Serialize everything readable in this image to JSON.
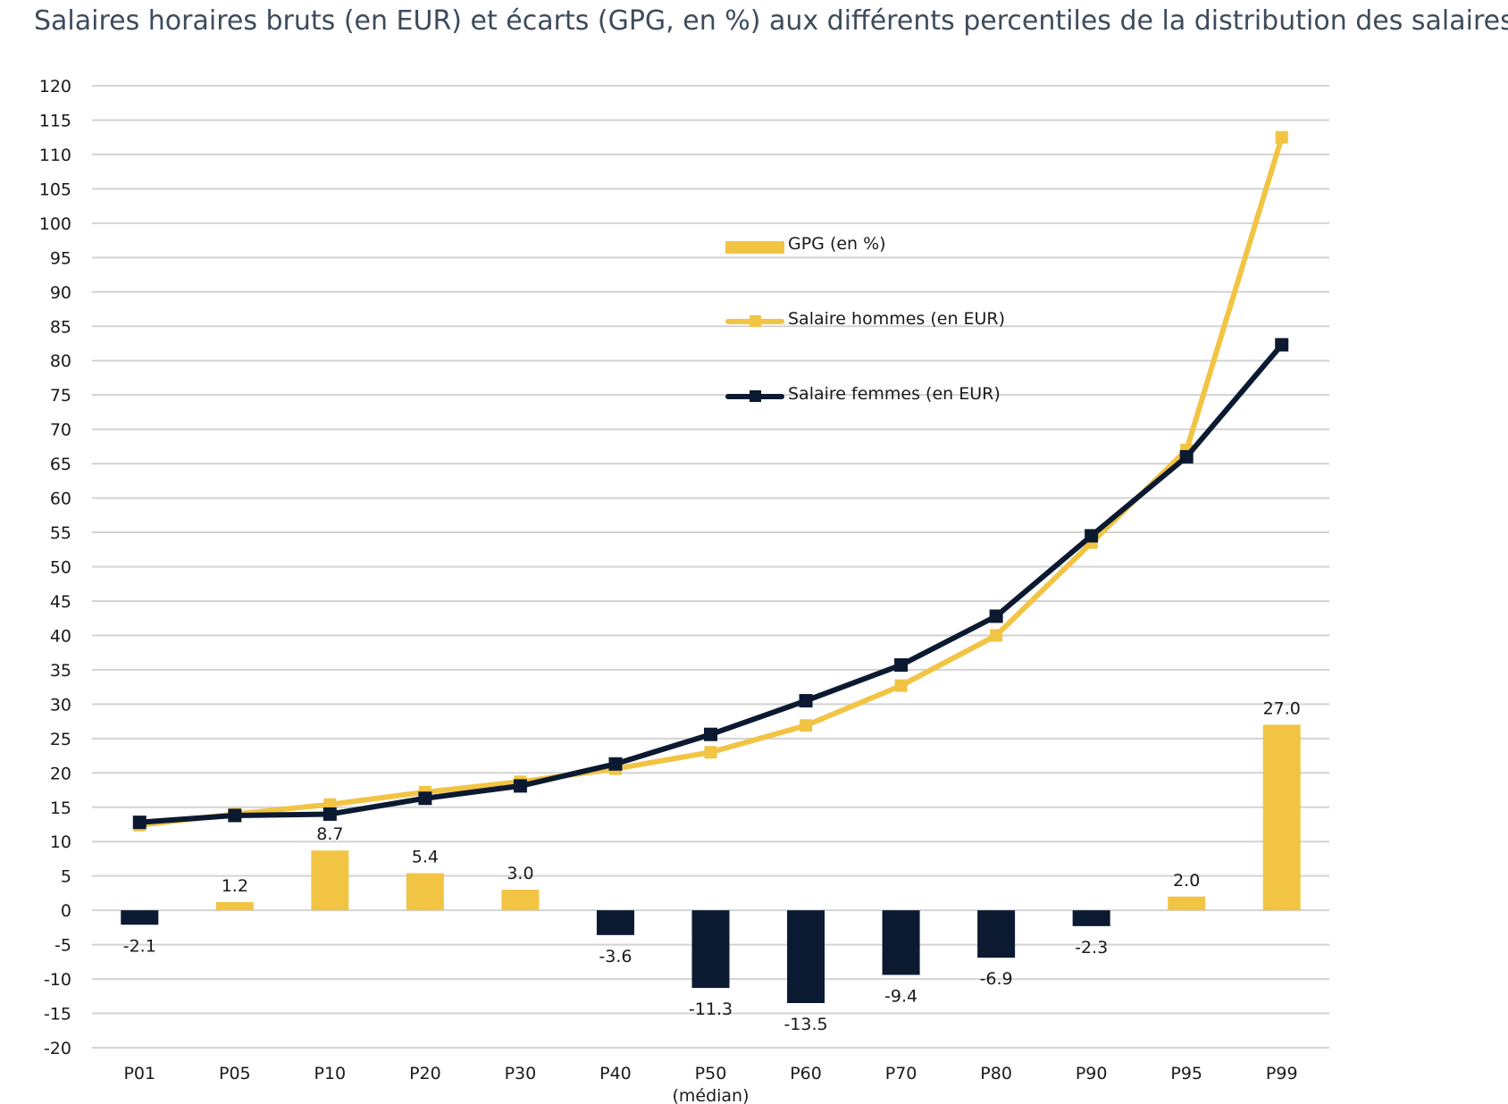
{
  "title": "Salaires horaires bruts (en EUR) et écarts (GPG, en %) aux différents percentiles de la distribution des salaires",
  "legend": {
    "gpg": "GPG (en %)",
    "hommes": "Salaire hommes (en EUR)",
    "femmes": "Salaire femmes (en EUR)"
  },
  "chart_data": {
    "type": "bar+line",
    "title": "Salaires horaires bruts (en EUR) et écarts (GPG, en %) aux différents percentiles de la distribution des salaires",
    "categories": [
      "P01",
      "P05",
      "P10",
      "P20",
      "P30",
      "P40",
      "P50",
      "P60",
      "P70",
      "P80",
      "P90",
      "P95",
      "P99"
    ],
    "category_sublabels": [
      "",
      "",
      "",
      "",
      "",
      "",
      "(médian)",
      "",
      "",
      "",
      "",
      "",
      ""
    ],
    "ylim": [
      -20,
      120
    ],
    "yticks": [
      120,
      115,
      110,
      105,
      100,
      95,
      90,
      85,
      80,
      75,
      70,
      65,
      60,
      55,
      50,
      45,
      40,
      35,
      30,
      25,
      20,
      15,
      10,
      5,
      0,
      -5,
      -10,
      -15,
      -20
    ],
    "grid": true,
    "legend_position": "center",
    "series": [
      {
        "name": "GPG (en %)",
        "kind": "bar",
        "values": [
          -2.1,
          1.2,
          8.7,
          5.4,
          3.0,
          -3.6,
          -11.3,
          -13.5,
          -9.4,
          -6.9,
          -2.3,
          2.0,
          27.0
        ],
        "data_labels": [
          "-2.1",
          "1.2",
          "8.7",
          "5.4",
          "3.0",
          "-3.6",
          "-11.3",
          "-13.5",
          "-9.4",
          "-6.9",
          "-2.3",
          "2.0",
          "27.0"
        ],
        "positive_color": "#f2c444",
        "negative_color": "#0b1a30"
      },
      {
        "name": "Salaire hommes (en EUR)",
        "kind": "line",
        "values": [
          12.4,
          14.0,
          15.4,
          17.2,
          18.7,
          20.6,
          23.0,
          26.9,
          32.7,
          40.0,
          53.5,
          67.0,
          112.5
        ],
        "color": "#f2c444"
      },
      {
        "name": "Salaire femmes (en EUR)",
        "kind": "line",
        "values": [
          12.8,
          13.8,
          14.0,
          16.3,
          18.1,
          21.3,
          25.6,
          30.5,
          35.7,
          42.8,
          54.5,
          66.0,
          82.3
        ],
        "color": "#0b1a30"
      }
    ]
  }
}
